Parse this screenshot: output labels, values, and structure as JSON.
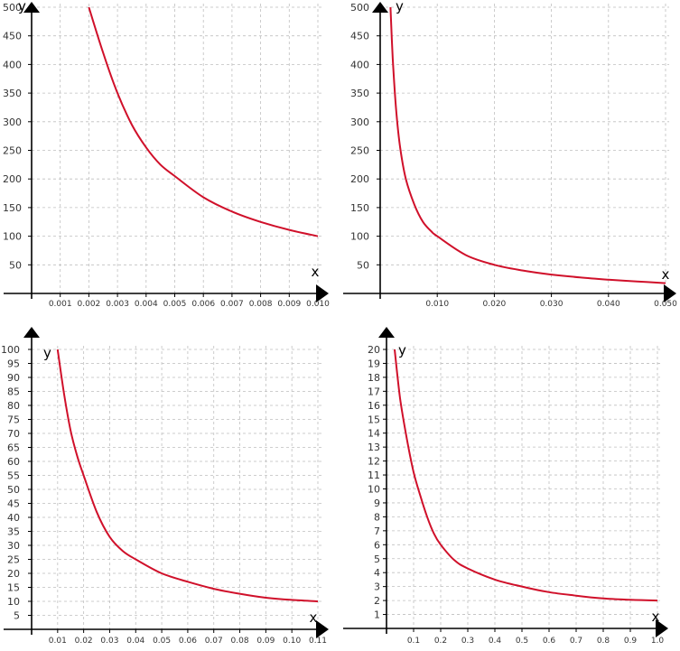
{
  "curve_color": "#d0102a",
  "chart_data": [
    {
      "type": "line",
      "xlabel": "x",
      "ylabel": "y",
      "xlim": [
        0,
        0.01
      ],
      "ylim": [
        0,
        500
      ],
      "xticks": [
        0.001,
        0.002,
        0.003,
        0.004,
        0.005,
        0.006,
        0.007,
        0.008,
        0.009,
        0.01
      ],
      "xtick_labels": [
        "0.001",
        "0.002",
        "0.003",
        "0.004",
        "0.005",
        "0.006",
        "0.007",
        "0.008",
        "0.009",
        "0.010"
      ],
      "yticks": [
        50,
        100,
        150,
        200,
        250,
        300,
        350,
        400,
        450,
        500
      ],
      "ytick_labels": [
        "50",
        "100",
        "150",
        "200",
        "250",
        "300",
        "350",
        "400",
        "450",
        "500"
      ],
      "grid": true,
      "series": [
        {
          "x": [
            0.002,
            0.0025,
            0.003,
            0.0035,
            0.004,
            0.0045,
            0.005,
            0.006,
            0.007,
            0.008,
            0.009,
            0.01
          ],
          "y": [
            500,
            420,
            350,
            295,
            255,
            225,
            205,
            168,
            143,
            125,
            111,
            100
          ]
        }
      ]
    },
    {
      "type": "line",
      "xlabel": "x",
      "ylabel": "y",
      "xlim": [
        0,
        0.05
      ],
      "ylim": [
        0,
        500
      ],
      "xticks": [
        0.01,
        0.02,
        0.03,
        0.04,
        0.05
      ],
      "xtick_labels": [
        "0.010",
        "0.020",
        "0.030",
        "0.040",
        "0.050"
      ],
      "yticks": [
        50,
        100,
        150,
        200,
        250,
        300,
        350,
        400,
        450,
        500
      ],
      "ytick_labels": [
        "50",
        "100",
        "150",
        "200",
        "250",
        "300",
        "350",
        "400",
        "450",
        "500"
      ],
      "grid": true,
      "series": [
        {
          "x": [
            0.0018,
            0.0022,
            0.0028,
            0.0035,
            0.0045,
            0.006,
            0.0075,
            0.009,
            0.01,
            0.015,
            0.02,
            0.025,
            0.03,
            0.035,
            0.04,
            0.045,
            0.05
          ],
          "y": [
            500,
            410,
            320,
            255,
            200,
            155,
            125,
            108,
            100,
            67,
            50,
            40,
            33,
            28,
            24,
            21,
            18
          ]
        }
      ]
    },
    {
      "type": "line",
      "xlabel": "x",
      "ylabel": "y",
      "xlim": [
        0,
        0.11
      ],
      "ylim": [
        0,
        100
      ],
      "xticks": [
        0.01,
        0.02,
        0.03,
        0.04,
        0.05,
        0.06,
        0.07,
        0.08,
        0.09,
        0.1,
        0.11
      ],
      "xtick_labels": [
        "0.01",
        "0.02",
        "0.03",
        "0.04",
        "0.05",
        "0.06",
        "0.07",
        "0.08",
        "0.09",
        "0.10",
        "0.11"
      ],
      "yticks": [
        5,
        10,
        15,
        20,
        25,
        30,
        35,
        40,
        45,
        50,
        55,
        60,
        65,
        70,
        75,
        80,
        85,
        90,
        95,
        100
      ],
      "ytick_labels": [
        "5",
        "10",
        "15",
        "20",
        "25",
        "30",
        "35",
        "40",
        "45",
        "50",
        "55",
        "60",
        "65",
        "70",
        "75",
        "80",
        "85",
        "90",
        "95",
        "100"
      ],
      "grid": true,
      "series": [
        {
          "x": [
            0.01,
            0.0125,
            0.015,
            0.0175,
            0.02,
            0.025,
            0.03,
            0.035,
            0.04,
            0.05,
            0.06,
            0.07,
            0.08,
            0.09,
            0.1,
            0.11
          ],
          "y": [
            100,
            84,
            71,
            62,
            55,
            42,
            33,
            28,
            25,
            20,
            17,
            14.5,
            12.7,
            11.3,
            10.5,
            10
          ]
        }
      ]
    },
    {
      "type": "line",
      "xlabel": "x",
      "ylabel": "y",
      "xlim": [
        0,
        1.0
      ],
      "ylim": [
        0,
        20
      ],
      "xticks": [
        0.1,
        0.2,
        0.3,
        0.4,
        0.5,
        0.6,
        0.7,
        0.8,
        0.9,
        1.0
      ],
      "xtick_labels": [
        "0.1",
        "0.2",
        "0.3",
        "0.4",
        "0.5",
        "0.6",
        "0.7",
        "0.8",
        "0.9",
        "1.0"
      ],
      "yticks": [
        1,
        2,
        3,
        4,
        5,
        6,
        7,
        8,
        9,
        10,
        11,
        12,
        13,
        14,
        15,
        16,
        17,
        18,
        19,
        20
      ],
      "ytick_labels": [
        "1",
        "2",
        "3",
        "4",
        "5",
        "6",
        "7",
        "8",
        "9",
        "10",
        "11",
        "12",
        "13",
        "14",
        "15",
        "16",
        "17",
        "18",
        "19",
        "20"
      ],
      "grid": true,
      "series": [
        {
          "x": [
            0.03,
            0.05,
            0.075,
            0.1,
            0.125,
            0.15,
            0.175,
            0.2,
            0.25,
            0.3,
            0.4,
            0.5,
            0.6,
            0.7,
            0.8,
            0.9,
            1.0
          ],
          "y": [
            20,
            16.5,
            13.6,
            11.2,
            9.5,
            8.0,
            6.8,
            6.0,
            4.9,
            4.3,
            3.5,
            3.0,
            2.6,
            2.35,
            2.15,
            2.05,
            2.0
          ]
        }
      ]
    }
  ]
}
